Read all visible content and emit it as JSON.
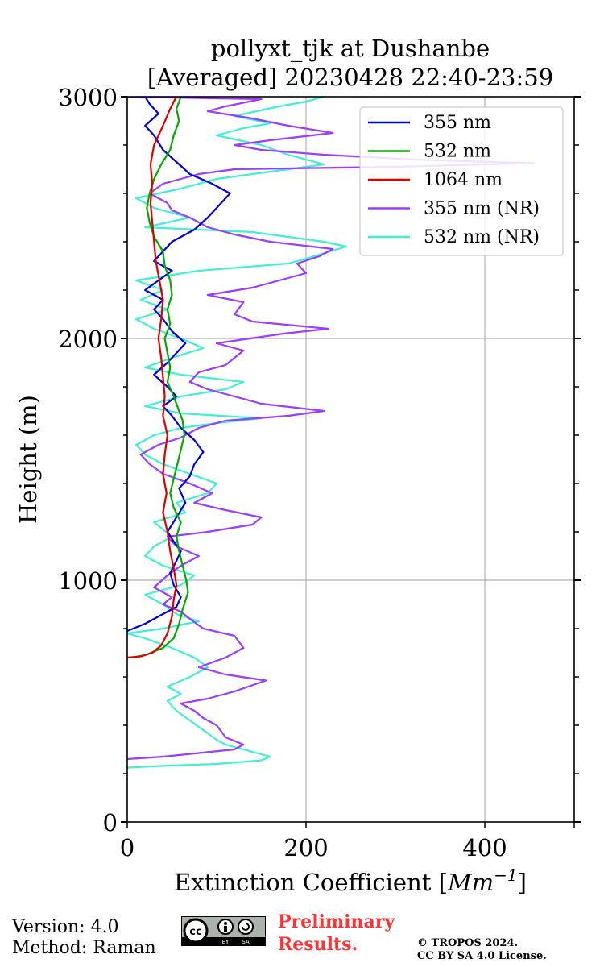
{
  "chart_data": {
    "type": "line",
    "title_line1": "pollyxt_tjk at Dushanbe",
    "title_line2": "[Averaged] 20230428 22:40-23:59",
    "xlabel": "Extinction Coefficient [Mm⁻¹]",
    "ylabel": "Height (m)",
    "xlim": [
      0,
      500
    ],
    "ylim": [
      0,
      3000
    ],
    "xticks": [
      0,
      200,
      400
    ],
    "yticks": [
      0,
      1000,
      2000,
      3000
    ],
    "grid": true,
    "legend_position": "top-right",
    "series": [
      {
        "name": "355 nm",
        "color": "#0000dd",
        "points": [
          [
            0,
            790
          ],
          [
            20,
            820
          ],
          [
            40,
            860
          ],
          [
            55,
            890
          ],
          [
            60,
            930
          ],
          [
            52,
            980
          ],
          [
            48,
            1030
          ],
          [
            55,
            1080
          ],
          [
            60,
            1120
          ],
          [
            52,
            1160
          ],
          [
            45,
            1200
          ],
          [
            55,
            1260
          ],
          [
            65,
            1320
          ],
          [
            58,
            1380
          ],
          [
            70,
            1430
          ],
          [
            75,
            1480
          ],
          [
            85,
            1530
          ],
          [
            75,
            1580
          ],
          [
            60,
            1630
          ],
          [
            50,
            1680
          ],
          [
            40,
            1720
          ],
          [
            55,
            1760
          ],
          [
            45,
            1800
          ],
          [
            30,
            1850
          ],
          [
            45,
            1900
          ],
          [
            55,
            1940
          ],
          [
            65,
            1980
          ],
          [
            50,
            2030
          ],
          [
            40,
            2080
          ],
          [
            30,
            2120
          ],
          [
            40,
            2160
          ],
          [
            20,
            2200
          ],
          [
            35,
            2240
          ],
          [
            50,
            2280
          ],
          [
            30,
            2320
          ],
          [
            40,
            2360
          ],
          [
            50,
            2400
          ],
          [
            75,
            2450
          ],
          [
            90,
            2500
          ],
          [
            105,
            2560
          ],
          [
            115,
            2600
          ],
          [
            95,
            2640
          ],
          [
            70,
            2680
          ],
          [
            55,
            2730
          ],
          [
            40,
            2780
          ],
          [
            30,
            2840
          ],
          [
            20,
            2880
          ],
          [
            35,
            2930
          ],
          [
            25,
            2970
          ],
          [
            20,
            3000
          ]
        ]
      },
      {
        "name": "532 nm",
        "color": "#00aa00",
        "points": [
          [
            5,
            680
          ],
          [
            20,
            690
          ],
          [
            40,
            720
          ],
          [
            52,
            760
          ],
          [
            58,
            820
          ],
          [
            62,
            880
          ],
          [
            68,
            950
          ],
          [
            66,
            1000
          ],
          [
            62,
            1060
          ],
          [
            58,
            1120
          ],
          [
            55,
            1180
          ],
          [
            60,
            1240
          ],
          [
            52,
            1300
          ],
          [
            48,
            1360
          ],
          [
            52,
            1420
          ],
          [
            56,
            1480
          ],
          [
            60,
            1540
          ],
          [
            64,
            1600
          ],
          [
            62,
            1660
          ],
          [
            58,
            1700
          ],
          [
            52,
            1760
          ],
          [
            45,
            1820
          ],
          [
            48,
            1880
          ],
          [
            45,
            1940
          ],
          [
            42,
            2000
          ],
          [
            48,
            2060
          ],
          [
            45,
            2120
          ],
          [
            50,
            2180
          ],
          [
            48,
            2240
          ],
          [
            42,
            2300
          ],
          [
            40,
            2360
          ],
          [
            30,
            2420
          ],
          [
            25,
            2480
          ],
          [
            22,
            2540
          ],
          [
            25,
            2600
          ],
          [
            30,
            2660
          ],
          [
            38,
            2720
          ],
          [
            48,
            2780
          ],
          [
            52,
            2840
          ],
          [
            58,
            2900
          ],
          [
            55,
            2950
          ],
          [
            60,
            3000
          ]
        ]
      },
      {
        "name": "1064 nm",
        "color": "#dd0000",
        "points": [
          [
            0,
            680
          ],
          [
            15,
            685
          ],
          [
            28,
            700
          ],
          [
            38,
            730
          ],
          [
            45,
            780
          ],
          [
            50,
            850
          ],
          [
            52,
            920
          ],
          [
            55,
            980
          ],
          [
            52,
            1050
          ],
          [
            48,
            1120
          ],
          [
            45,
            1200
          ],
          [
            40,
            1280
          ],
          [
            44,
            1360
          ],
          [
            40,
            1440
          ],
          [
            42,
            1520
          ],
          [
            45,
            1600
          ],
          [
            40,
            1680
          ],
          [
            42,
            1760
          ],
          [
            40,
            1840
          ],
          [
            38,
            1920
          ],
          [
            35,
            2000
          ],
          [
            38,
            2080
          ],
          [
            40,
            2160
          ],
          [
            36,
            2240
          ],
          [
            32,
            2320
          ],
          [
            30,
            2400
          ],
          [
            28,
            2480
          ],
          [
            26,
            2560
          ],
          [
            28,
            2640
          ],
          [
            26,
            2720
          ],
          [
            30,
            2800
          ],
          [
            40,
            2880
          ],
          [
            48,
            2950
          ],
          [
            55,
            3000
          ]
        ]
      },
      {
        "name": "355 nm (NR)",
        "color": "#9b3dff",
        "points": [
          [
            0,
            260
          ],
          [
            40,
            270
          ],
          [
            80,
            285
          ],
          [
            120,
            300
          ],
          [
            130,
            320
          ],
          [
            110,
            350
          ],
          [
            100,
            400
          ],
          [
            85,
            430
          ],
          [
            75,
            460
          ],
          [
            60,
            490
          ],
          [
            90,
            510
          ],
          [
            120,
            540
          ],
          [
            155,
            585
          ],
          [
            110,
            610
          ],
          [
            80,
            640
          ],
          [
            110,
            680
          ],
          [
            130,
            720
          ],
          [
            120,
            770
          ],
          [
            85,
            800
          ],
          [
            70,
            840
          ],
          [
            60,
            870
          ],
          [
            40,
            900
          ],
          [
            50,
            930
          ],
          [
            30,
            970
          ],
          [
            45,
            1020
          ],
          [
            60,
            1060
          ],
          [
            80,
            1100
          ],
          [
            55,
            1140
          ],
          [
            45,
            1180
          ],
          [
            90,
            1200
          ],
          [
            140,
            1230
          ],
          [
            150,
            1260
          ],
          [
            110,
            1290
          ],
          [
            75,
            1320
          ],
          [
            95,
            1360
          ],
          [
            70,
            1400
          ],
          [
            40,
            1440
          ],
          [
            25,
            1480
          ],
          [
            15,
            1520
          ],
          [
            35,
            1560
          ],
          [
            60,
            1590
          ],
          [
            80,
            1630
          ],
          [
            110,
            1660
          ],
          [
            180,
            1680
          ],
          [
            220,
            1700
          ],
          [
            150,
            1730
          ],
          [
            120,
            1760
          ],
          [
            90,
            1790
          ],
          [
            70,
            1820
          ],
          [
            80,
            1860
          ],
          [
            110,
            1890
          ],
          [
            120,
            1920
          ],
          [
            130,
            1950
          ],
          [
            100,
            1980
          ],
          [
            175,
            2020
          ],
          [
            225,
            2040
          ],
          [
            140,
            2070
          ],
          [
            120,
            2100
          ],
          [
            130,
            2150
          ],
          [
            90,
            2180
          ],
          [
            140,
            2210
          ],
          [
            170,
            2240
          ],
          [
            200,
            2270
          ],
          [
            190,
            2310
          ],
          [
            215,
            2340
          ],
          [
            230,
            2370
          ],
          [
            160,
            2400
          ],
          [
            120,
            2430
          ],
          [
            90,
            2460
          ],
          [
            70,
            2500
          ],
          [
            50,
            2530
          ],
          [
            45,
            2560
          ],
          [
            25,
            2600
          ],
          [
            40,
            2640
          ],
          [
            80,
            2680
          ],
          [
            120,
            2700
          ],
          [
            300,
            2710
          ],
          [
            455,
            2725
          ],
          [
            320,
            2740
          ],
          [
            220,
            2760
          ],
          [
            150,
            2780
          ],
          [
            120,
            2800
          ],
          [
            160,
            2820
          ],
          [
            230,
            2850
          ],
          [
            180,
            2880
          ],
          [
            140,
            2910
          ],
          [
            90,
            2940
          ],
          [
            110,
            2960
          ],
          [
            150,
            2990
          ],
          [
            0,
            3000
          ]
        ]
      },
      {
        "name": "532 nm (NR)",
        "color": "#40f0d0",
        "points": [
          [
            0,
            225
          ],
          [
            40,
            232
          ],
          [
            100,
            240
          ],
          [
            150,
            255
          ],
          [
            160,
            270
          ],
          [
            145,
            285
          ],
          [
            130,
            300
          ],
          [
            110,
            320
          ],
          [
            100,
            340
          ],
          [
            85,
            380
          ],
          [
            70,
            420
          ],
          [
            55,
            460
          ],
          [
            45,
            500
          ],
          [
            60,
            530
          ],
          [
            45,
            560
          ],
          [
            70,
            600
          ],
          [
            90,
            640
          ],
          [
            75,
            680
          ],
          [
            50,
            720
          ],
          [
            20,
            760
          ],
          [
            0,
            780
          ],
          [
            40,
            800
          ],
          [
            80,
            830
          ],
          [
            55,
            860
          ],
          [
            40,
            900
          ],
          [
            20,
            940
          ],
          [
            60,
            980
          ],
          [
            75,
            1020
          ],
          [
            40,
            1060
          ],
          [
            20,
            1100
          ],
          [
            30,
            1140
          ],
          [
            50,
            1180
          ],
          [
            30,
            1240
          ],
          [
            65,
            1280
          ],
          [
            55,
            1320
          ],
          [
            90,
            1360
          ],
          [
            100,
            1400
          ],
          [
            70,
            1440
          ],
          [
            40,
            1480
          ],
          [
            20,
            1520
          ],
          [
            10,
            1560
          ],
          [
            30,
            1600
          ],
          [
            60,
            1630
          ],
          [
            100,
            1650
          ],
          [
            150,
            1670
          ],
          [
            60,
            1690
          ],
          [
            20,
            1720
          ],
          [
            60,
            1760
          ],
          [
            110,
            1790
          ],
          [
            130,
            1820
          ],
          [
            60,
            1850
          ],
          [
            20,
            1880
          ],
          [
            50,
            1920
          ],
          [
            85,
            1960
          ],
          [
            60,
            2000
          ],
          [
            30,
            2040
          ],
          [
            10,
            2080
          ],
          [
            45,
            2120
          ],
          [
            15,
            2160
          ],
          [
            40,
            2200
          ],
          [
            10,
            2240
          ],
          [
            80,
            2280
          ],
          [
            180,
            2310
          ],
          [
            200,
            2330
          ],
          [
            245,
            2380
          ],
          [
            220,
            2400
          ],
          [
            180,
            2420
          ],
          [
            140,
            2440
          ],
          [
            20,
            2460
          ],
          [
            70,
            2500
          ],
          [
            30,
            2540
          ],
          [
            10,
            2580
          ],
          [
            60,
            2620
          ],
          [
            100,
            2660
          ],
          [
            180,
            2700
          ],
          [
            220,
            2720
          ],
          [
            180,
            2760
          ],
          [
            150,
            2800
          ],
          [
            100,
            2840
          ],
          [
            130,
            2870
          ],
          [
            160,
            2890
          ],
          [
            120,
            2920
          ],
          [
            170,
            2960
          ],
          [
            200,
            2980
          ],
          [
            220,
            3000
          ]
        ]
      }
    ]
  },
  "footer": {
    "version": "Version: 4.0",
    "method": "Method: Raman",
    "preliminary_line1": "Preliminary",
    "preliminary_line2": "Results.",
    "copyright_line1": "© TROPOS 2024.",
    "copyright_line2": "CC BY SA 4.0 License.",
    "badge_by": "BY",
    "badge_sa": "SA",
    "badge_cc": "cc"
  }
}
